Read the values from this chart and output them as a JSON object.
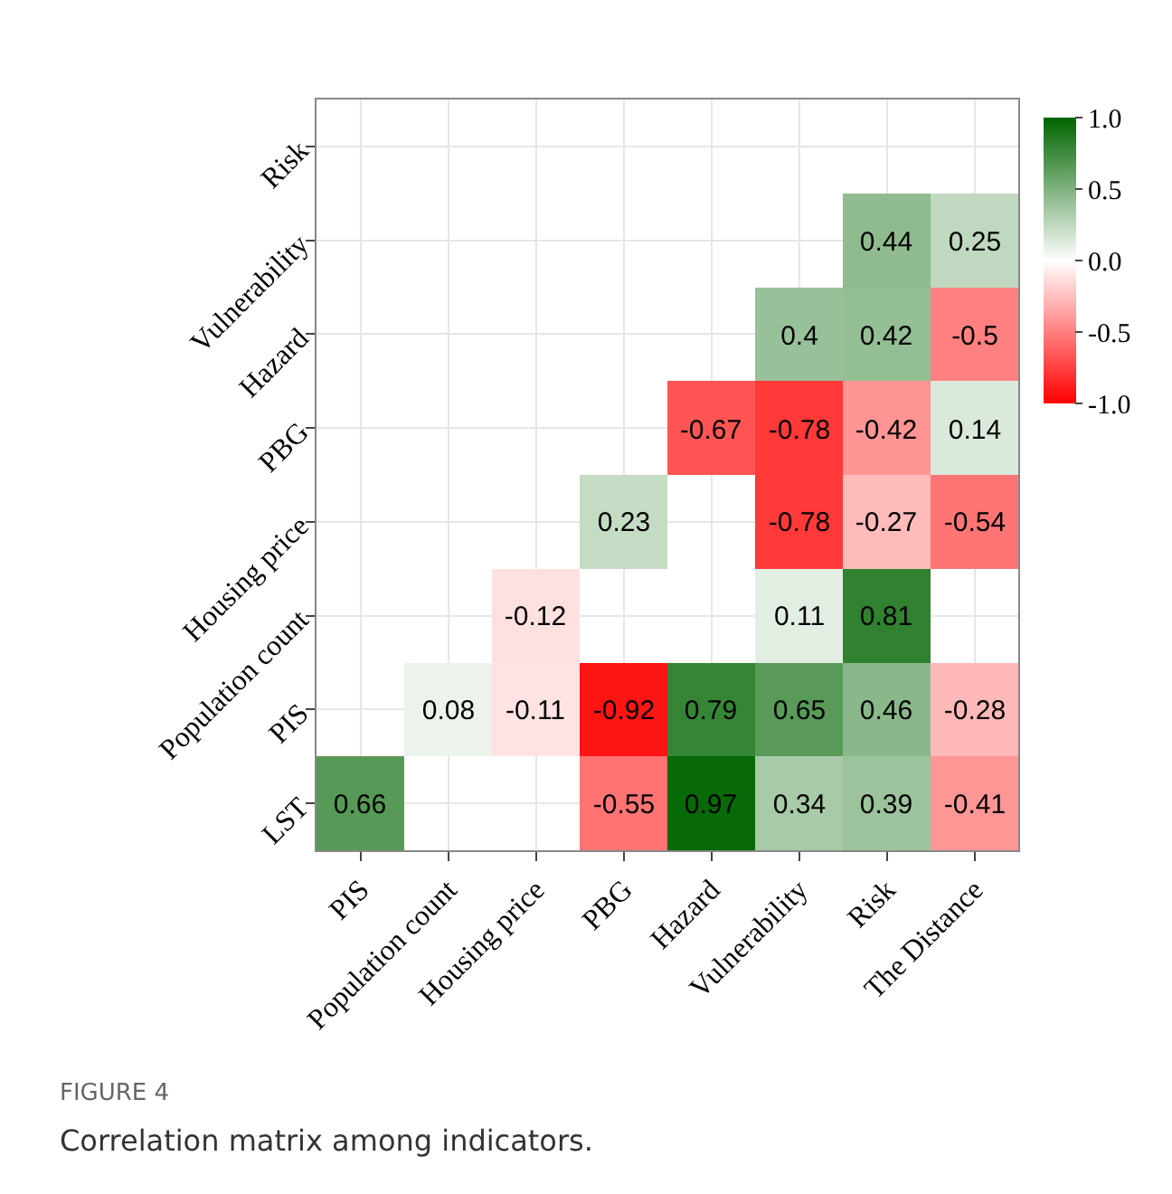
{
  "chart_data": {
    "type": "heatmap",
    "categories": [
      "PIS",
      "Population count",
      "Housing price",
      "PBG",
      "Hazard",
      "Vulnerability",
      "Risk",
      "The Distance"
    ],
    "y_categories": [
      "Risk",
      "Vulnerability",
      "Hazard",
      "PBG",
      "Housing price",
      "Population count",
      "PIS",
      "LST"
    ],
    "cells": [
      [
        null,
        null,
        null,
        null,
        null,
        null,
        null,
        null
      ],
      [
        null,
        null,
        null,
        null,
        null,
        null,
        0.44,
        0.25
      ],
      [
        null,
        null,
        null,
        null,
        null,
        0.4,
        0.42,
        -0.5
      ],
      [
        null,
        null,
        null,
        null,
        -0.67,
        -0.78,
        -0.42,
        0.14
      ],
      [
        null,
        null,
        null,
        0.23,
        null,
        -0.78,
        -0.27,
        -0.54
      ],
      [
        null,
        null,
        -0.12,
        null,
        null,
        0.11,
        0.81,
        null
      ],
      [
        null,
        0.08,
        -0.11,
        -0.92,
        0.79,
        0.65,
        0.46,
        -0.28
      ],
      [
        0.66,
        null,
        null,
        -0.55,
        0.97,
        0.34,
        0.39,
        -0.41
      ]
    ],
    "clim": [
      -1.0,
      1.0
    ],
    "cticks": [
      {
        "value": 1.0,
        "label": "1.0"
      },
      {
        "value": 0.5,
        "label": "0.5"
      },
      {
        "value": 0.0,
        "label": "0.0"
      },
      {
        "value": -0.5,
        "label": "-0.5"
      },
      {
        "value": -1.0,
        "label": "-1.0"
      }
    ],
    "data_labels": true,
    "grid": true,
    "annotations": [
      "FIGURE 4",
      "Correlation matrix among indicators."
    ]
  }
}
